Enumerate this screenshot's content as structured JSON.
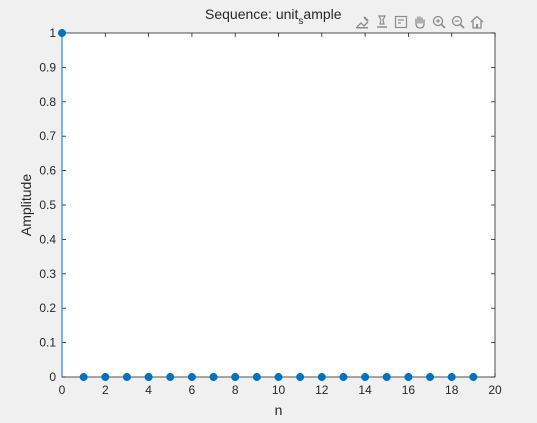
{
  "window": {
    "background": "#f0f0f0"
  },
  "title": {
    "main": "Sequence: unit",
    "subscript": "s",
    "rest": "ample"
  },
  "toolbar": {
    "buttons": [
      {
        "name": "brush-icon"
      },
      {
        "name": "data-tips-icon"
      },
      {
        "name": "legend-icon"
      },
      {
        "name": "pan-icon"
      },
      {
        "name": "zoom-in-icon"
      },
      {
        "name": "zoom-out-icon"
      },
      {
        "name": "home-icon"
      }
    ]
  },
  "chart_data": {
    "type": "stem",
    "xlabel": "n",
    "ylabel": "Amplitude",
    "xlim": [
      0,
      20
    ],
    "ylim": [
      0,
      1
    ],
    "xticks": [
      0,
      2,
      4,
      6,
      8,
      10,
      12,
      14,
      16,
      18,
      20
    ],
    "yticks": [
      0,
      0.1,
      0.2,
      0.3,
      0.4,
      0.5,
      0.6,
      0.7,
      0.8,
      0.9,
      1
    ],
    "x": [
      0,
      1,
      2,
      3,
      4,
      5,
      6,
      7,
      8,
      9,
      10,
      11,
      12,
      13,
      14,
      15,
      16,
      17,
      18,
      19
    ],
    "y": [
      1,
      0,
      0,
      0,
      0,
      0,
      0,
      0,
      0,
      0,
      0,
      0,
      0,
      0,
      0,
      0,
      0,
      0,
      0,
      0
    ],
    "color": "#0072bd",
    "grid": false
  }
}
